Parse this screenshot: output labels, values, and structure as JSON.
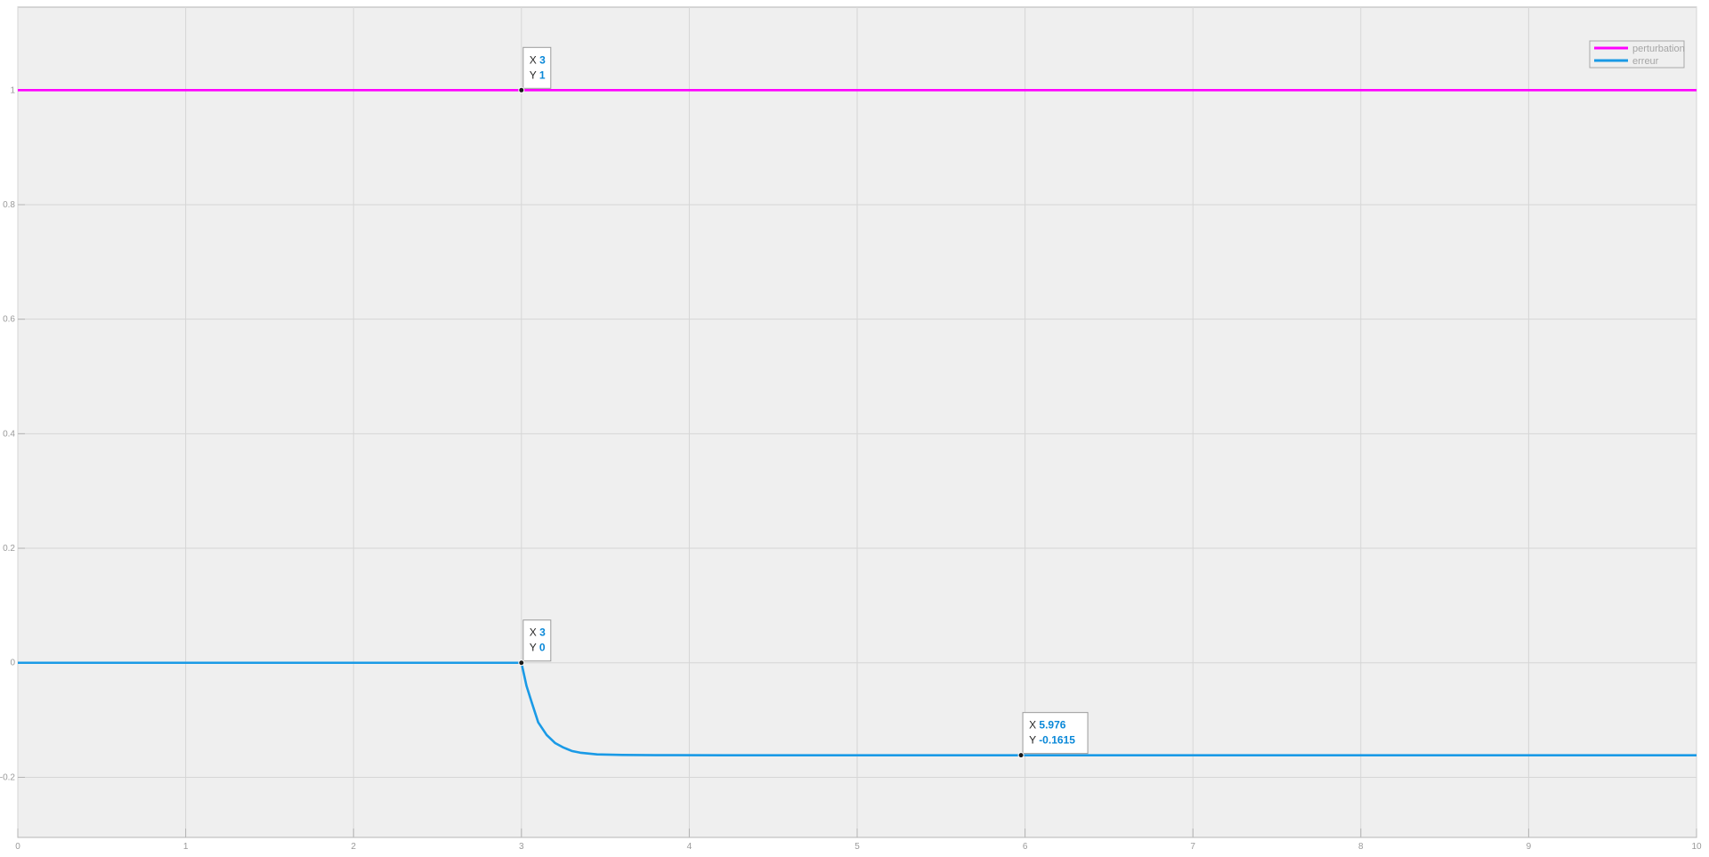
{
  "chart_data": {
    "type": "line",
    "title": "",
    "xlabel": "",
    "ylabel": "",
    "xlim": [
      0,
      10
    ],
    "ylim": [
      -0.305,
      1.145
    ],
    "xticks": [
      0,
      1,
      2,
      3,
      4,
      5,
      6,
      7,
      8,
      9,
      10
    ],
    "yticks": [
      -0.2,
      0,
      0.2,
      0.4,
      0.6,
      0.8,
      1
    ],
    "xtick_labels": [
      "0",
      "1",
      "2",
      "3",
      "4",
      "5",
      "6",
      "7",
      "8",
      "9",
      "10"
    ],
    "ytick_labels": [
      "-0.2",
      "0",
      "0.2",
      "0.4",
      "0.6",
      "0.8",
      "1"
    ],
    "grid": true,
    "legend_position": "top-right",
    "series": [
      {
        "name": "perturbation",
        "color": "#ff00ff",
        "points": [
          [
            0,
            1
          ],
          [
            3,
            1
          ],
          [
            10,
            1
          ]
        ]
      },
      {
        "name": "erreur",
        "color": "#1a9ae6",
        "points": [
          [
            0,
            0
          ],
          [
            3,
            0
          ],
          [
            3.03,
            -0.04
          ],
          [
            3.06,
            -0.068
          ],
          [
            3.1,
            -0.104
          ],
          [
            3.15,
            -0.126
          ],
          [
            3.2,
            -0.14
          ],
          [
            3.25,
            -0.148
          ],
          [
            3.3,
            -0.154
          ],
          [
            3.35,
            -0.157
          ],
          [
            3.45,
            -0.16
          ],
          [
            3.6,
            -0.161
          ],
          [
            3.8,
            -0.1613
          ],
          [
            4.2,
            -0.1615
          ],
          [
            5.976,
            -0.1615
          ],
          [
            10,
            -0.1615
          ]
        ]
      }
    ],
    "datatips": [
      {
        "x_label": "X",
        "y_label": "Y",
        "x": "3",
        "y": "1",
        "px": 3,
        "py": 1
      },
      {
        "x_label": "X",
        "y_label": "Y",
        "x": "3",
        "y": "0",
        "px": 3,
        "py": 0
      },
      {
        "x_label": "X",
        "y_label": "Y",
        "x": "5.976",
        "y": "-0.1615",
        "px": 5.976,
        "py": -0.1615
      }
    ],
    "colors": {
      "axes_background": "#efefef",
      "grid": "#d6d6d6",
      "axis": "#b4b4b4",
      "tick_text": "#9a9a9a",
      "datatip_value": "#0a88d8"
    }
  }
}
